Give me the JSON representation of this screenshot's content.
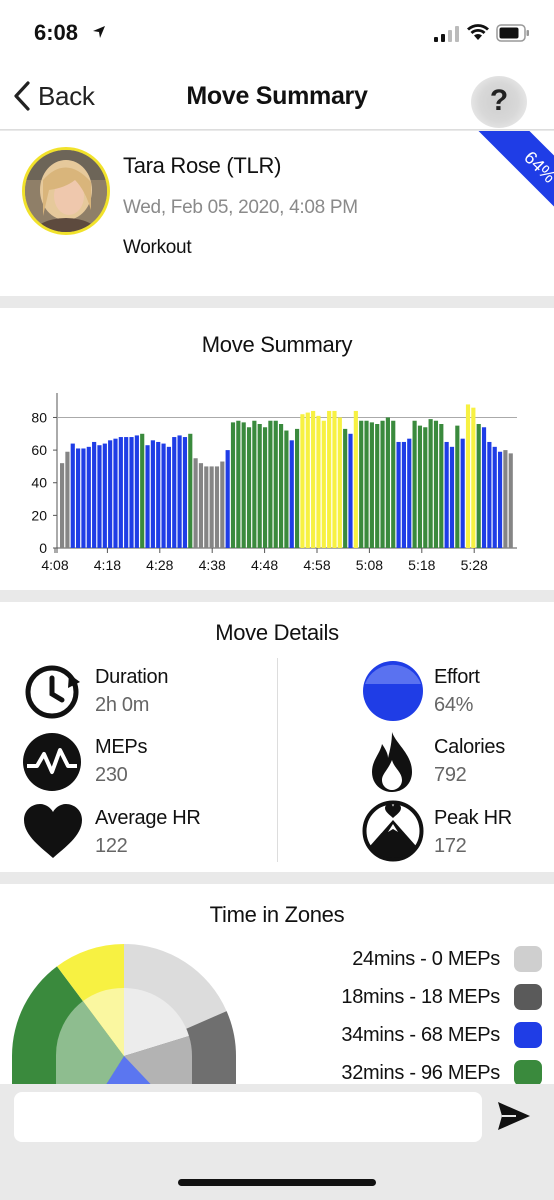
{
  "status_bar": {
    "time": "6:08"
  },
  "nav": {
    "back_label": "Back",
    "title": "Move Summary",
    "help_glyph": "?"
  },
  "profile": {
    "name": "Tara Rose (TLR)",
    "date": "Wed, Feb 05, 2020, 4:08 PM",
    "type": "Workout",
    "effort_ribbon": "64%"
  },
  "move_summary": {
    "title": "Move Summary"
  },
  "chart_data": {
    "type": "bar",
    "x_tick_labels": [
      "4:08",
      "4:18",
      "4:28",
      "4:38",
      "4:48",
      "4:58",
      "5:08",
      "5:18",
      "5:28"
    ],
    "y_ticks": [
      0,
      20,
      40,
      60,
      80
    ],
    "ylim": [
      0,
      95
    ],
    "reference_line": 80,
    "grid": false,
    "zone_colors": {
      "gray": "#858585",
      "blue": "#1f3de6",
      "green": "#3a8a3d",
      "yellow": "#f7f142"
    },
    "values": [
      52,
      59,
      64,
      61,
      61,
      62,
      65,
      63,
      64,
      66,
      67,
      68,
      68,
      68,
      69,
      70,
      63,
      66,
      65,
      64,
      62,
      68,
      69,
      68,
      70,
      55,
      52,
      50,
      50,
      50,
      53,
      60,
      77,
      78,
      77,
      74,
      78,
      76,
      74,
      78,
      78,
      76,
      72,
      66,
      73,
      82,
      83,
      84,
      81,
      78,
      84,
      84,
      80,
      73,
      70,
      84,
      78,
      78,
      77,
      76,
      78,
      80,
      78,
      65,
      65,
      67,
      78,
      75,
      74,
      79,
      78,
      76,
      65,
      62,
      75,
      67,
      88,
      86,
      76,
      74,
      65,
      62,
      59,
      60,
      58
    ],
    "zones": [
      "gray",
      "gray",
      "blue",
      "blue",
      "blue",
      "blue",
      "blue",
      "blue",
      "blue",
      "blue",
      "blue",
      "blue",
      "blue",
      "blue",
      "blue",
      "green",
      "blue",
      "blue",
      "blue",
      "blue",
      "blue",
      "blue",
      "blue",
      "blue",
      "green",
      "gray",
      "gray",
      "gray",
      "gray",
      "gray",
      "gray",
      "blue",
      "green",
      "green",
      "green",
      "green",
      "green",
      "green",
      "green",
      "green",
      "green",
      "green",
      "green",
      "blue",
      "green",
      "yellow",
      "yellow",
      "yellow",
      "yellow",
      "yellow",
      "yellow",
      "yellow",
      "yellow",
      "green",
      "blue",
      "yellow",
      "green",
      "green",
      "green",
      "green",
      "green",
      "green",
      "green",
      "blue",
      "blue",
      "blue",
      "green",
      "green",
      "green",
      "green",
      "green",
      "green",
      "blue",
      "blue",
      "green",
      "blue",
      "yellow",
      "yellow",
      "green",
      "blue",
      "blue",
      "blue",
      "blue",
      "gray",
      "gray"
    ]
  },
  "move_details": {
    "title": "Move Details",
    "duration": {
      "label": "Duration",
      "value": "2h 0m"
    },
    "effort": {
      "label": "Effort",
      "value": "64%"
    },
    "meps": {
      "label": "MEPs",
      "value": "230"
    },
    "calories": {
      "label": "Calories",
      "value": "792"
    },
    "avg_hr": {
      "label": "Average HR",
      "value": "122"
    },
    "peak_hr": {
      "label": "Peak HR",
      "value": "172"
    }
  },
  "time_in_zones": {
    "title": "Time in Zones",
    "legend": [
      {
        "text": "24mins - 0 MEPs",
        "color": "#cfcfcf"
      },
      {
        "text": "18mins - 18 MEPs",
        "color": "#5a5a5a"
      },
      {
        "text": "34mins - 68 MEPs",
        "color": "#1f3de6"
      },
      {
        "text": "32mins - 96 MEPs",
        "color": "#3a8a3d"
      }
    ]
  },
  "composer": {
    "placeholder": ""
  }
}
